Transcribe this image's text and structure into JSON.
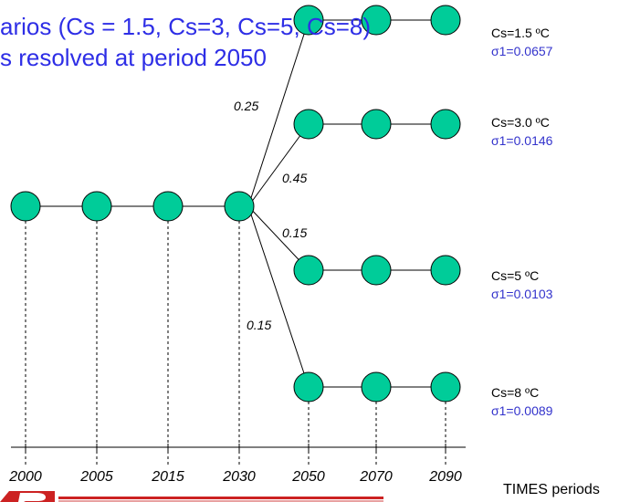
{
  "title": {
    "line1": "arios (Cs = 1.5, Cs=3, Cs=5, Cs=8)",
    "line2": "s resolved at period 2050"
  },
  "periods": [
    "2000",
    "2005",
    "2015",
    "2030",
    "2050",
    "2070",
    "2090"
  ],
  "axis_label": "TIMES periods",
  "branch_probabilities": [
    "0.25",
    "0.45",
    "0.15",
    "0.15"
  ],
  "scenarios": [
    {
      "cs": "Cs=1.5 ºC",
      "sigma": "σ1=0.0657"
    },
    {
      "cs": "Cs=3.0 ºC",
      "sigma": "σ1=0.0146"
    },
    {
      "cs": "Cs=5 ºC",
      "sigma": "σ1=0.0103"
    },
    {
      "cs": "Cs=8 ºC",
      "sigma": "σ1=0.0089"
    }
  ],
  "colors": {
    "node_fill": "#00cc99",
    "title_text": "#2e2ee6",
    "sigma_text": "#3333cc",
    "logo_red": "#cc2222"
  }
}
